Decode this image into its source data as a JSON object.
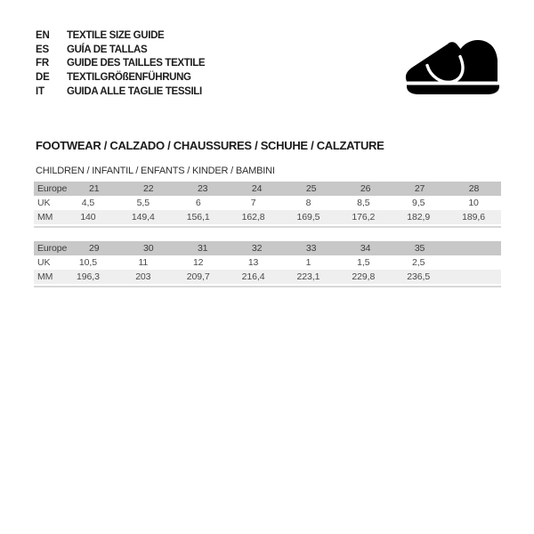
{
  "header": {
    "languages": [
      {
        "code": "EN",
        "title": "TEXTILE SIZE GUIDE"
      },
      {
        "code": "ES",
        "title": "GUÍA DE TALLAS"
      },
      {
        "code": "FR",
        "title": "GUIDE DES TAILLES TEXTILE"
      },
      {
        "code": "DE",
        "title": "TEXTILGRÖßENFÜHRUNG"
      },
      {
        "code": "IT",
        "title": "GUIDA ALLE TAGLIE TESSILI"
      }
    ],
    "logo_icon": "children-shoe-icon"
  },
  "section": {
    "title": "FOOTWEAR / CALZADO / CHAUSSURES / SCHUHE / CALZATURE",
    "subtitle": "CHILDREN / INFANTIL / ENFANTS / KINDER / BAMBINI"
  },
  "tables": [
    {
      "rows": [
        {
          "label": "Europe",
          "values": [
            "21",
            "22",
            "23",
            "24",
            "25",
            "26",
            "27",
            "28"
          ]
        },
        {
          "label": "UK",
          "values": [
            "4,5",
            "5,5",
            "6",
            "7",
            "8",
            "8,5",
            "9,5",
            "10"
          ]
        },
        {
          "label": "MM",
          "values": [
            "140",
            "149,4",
            "156,1",
            "162,8",
            "169,5",
            "176,2",
            "182,9",
            "189,6"
          ]
        }
      ]
    },
    {
      "rows": [
        {
          "label": "Europe",
          "values": [
            "29",
            "30",
            "31",
            "32",
            "33",
            "34",
            "35",
            ""
          ]
        },
        {
          "label": "UK",
          "values": [
            "10,5",
            "11",
            "12",
            "13",
            "1",
            "1,5",
            "2,5",
            ""
          ]
        },
        {
          "label": "MM",
          "values": [
            "196,3",
            "203",
            "209,7",
            "216,4",
            "223,1",
            "229,8",
            "236,5",
            ""
          ]
        }
      ]
    }
  ],
  "colors": {
    "table_header_bg": "#c8c8c8",
    "table_alt_row_bg": "#efefef",
    "table_rule": "#d8d8d8",
    "logo_color": "#000000"
  }
}
